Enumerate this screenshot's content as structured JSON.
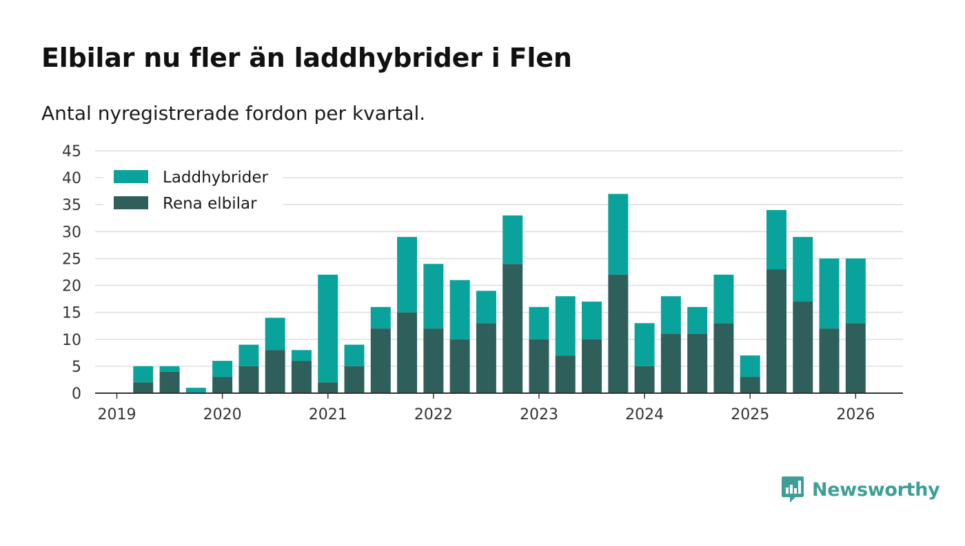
{
  "header": {
    "title": "Elbilar nu fler än laddhybrider i Flen",
    "subtitle": "Antal nyregistrerade fordon per kvartal."
  },
  "brand": {
    "name": "Newsworthy",
    "color": "#3e9e98"
  },
  "colors": {
    "laddhybrider": "#0aa39b",
    "rena_elbilar": "#2f5f5b",
    "grid": "#dddddd",
    "axis": "#333333"
  },
  "chart_data": {
    "type": "bar",
    "stacked": true,
    "categories": [
      "2019 Q2",
      "2019 Q3",
      "2019 Q4",
      "2020 Q1",
      "2020 Q2",
      "2020 Q3",
      "2020 Q4",
      "2021 Q1",
      "2021 Q2",
      "2021 Q3",
      "2021 Q4",
      "2022 Q1",
      "2022 Q2",
      "2022 Q3",
      "2022 Q4",
      "2023 Q1",
      "2023 Q2",
      "2023 Q3",
      "2023 Q4",
      "2024 Q1",
      "2024 Q2",
      "2024 Q3",
      "2024 Q4",
      "2025 Q1",
      "2025 Q2",
      "2025 Q3",
      "2025 Q4",
      "2026 Q1"
    ],
    "series": [
      {
        "name": "Rena elbilar",
        "values": [
          2,
          4,
          0,
          3,
          5,
          8,
          6,
          2,
          5,
          12,
          15,
          12,
          10,
          13,
          24,
          10,
          7,
          10,
          22,
          5,
          11,
          11,
          13,
          3,
          23,
          17,
          12,
          13
        ]
      },
      {
        "name": "Laddhybrider",
        "values": [
          3,
          1,
          1,
          3,
          4,
          6,
          2,
          20,
          4,
          4,
          14,
          12,
          11,
          6,
          9,
          6,
          11,
          7,
          15,
          8,
          7,
          5,
          9,
          4,
          11,
          12,
          13,
          12
        ]
      }
    ],
    "x_tick_labels": [
      "2019",
      "2020",
      "2021",
      "2022",
      "2023",
      "2024",
      "2025",
      "2026"
    ],
    "y_ticks": [
      0,
      5,
      10,
      15,
      20,
      25,
      30,
      35,
      40,
      45
    ],
    "ylim": [
      0,
      45
    ],
    "legend": [
      "Laddhybrider",
      "Rena elbilar"
    ],
    "legend_position": "top-left",
    "grid": true
  }
}
